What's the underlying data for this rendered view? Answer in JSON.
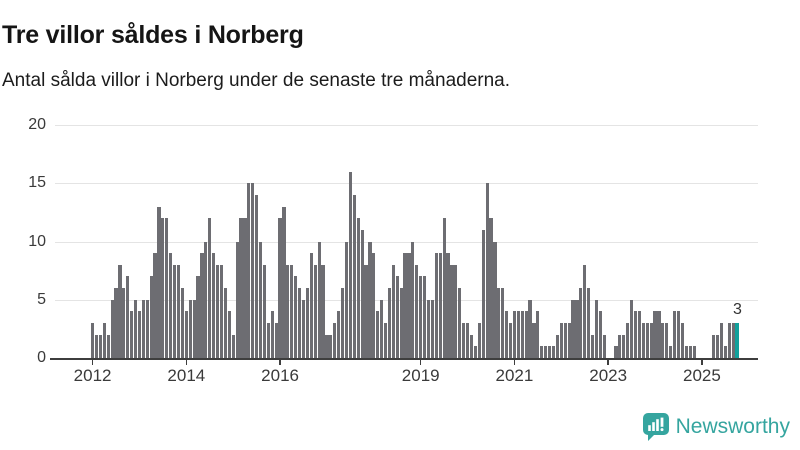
{
  "title": "Tre villor såldes i Norberg",
  "subtitle": "Antal sålda villor i Norberg under de senaste tre månaderna.",
  "chart_data": {
    "type": "bar",
    "x_start": "2012-01",
    "x_interval": "month",
    "values": [
      3,
      2,
      2,
      3,
      2,
      5,
      6,
      8,
      6,
      7,
      4,
      5,
      4,
      5,
      5,
      7,
      9,
      13,
      12,
      12,
      9,
      8,
      8,
      6,
      4,
      5,
      5,
      7,
      9,
      10,
      12,
      9,
      8,
      8,
      6,
      4,
      2,
      10,
      12,
      12,
      15,
      15,
      14,
      10,
      8,
      3,
      4,
      3,
      12,
      13,
      8,
      8,
      7,
      6,
      5,
      6,
      9,
      8,
      10,
      8,
      2,
      2,
      3,
      4,
      6,
      10,
      16,
      14,
      12,
      11,
      8,
      10,
      9,
      4,
      5,
      3,
      6,
      8,
      7,
      6,
      9,
      9,
      10,
      8,
      7,
      7,
      5,
      5,
      9,
      9,
      12,
      9,
      8,
      8,
      6,
      3,
      3,
      2,
      1,
      3,
      11,
      15,
      12,
      10,
      6,
      6,
      4,
      3,
      4,
      4,
      4,
      4,
      5,
      3,
      4,
      1,
      1,
      1,
      1,
      2,
      3,
      3,
      3,
      5,
      5,
      6,
      8,
      6,
      2,
      5,
      4,
      2,
      0,
      0,
      1,
      2,
      2,
      3,
      5,
      4,
      4,
      3,
      3,
      3,
      4,
      4,
      3,
      3,
      1,
      4,
      4,
      3,
      1,
      1,
      1,
      0,
      0,
      0,
      0,
      2,
      2,
      3,
      1,
      3,
      3,
      3
    ],
    "x_end": "2025-10",
    "highlight_last": true,
    "last_value_label": "3",
    "yticks": [
      0,
      5,
      10,
      15,
      20
    ],
    "ylim": [
      0,
      20
    ],
    "xtick_years": [
      "2012",
      "2014",
      "2016",
      "2019",
      "2021",
      "2023",
      "2025"
    ],
    "grid": "horizontal",
    "legend": "none",
    "bar_color": "#6d6d72",
    "highlight_color": "#12a19c",
    "grid_color": "#e4e4e4",
    "axis_color": "#3e3e3e",
    "tick_text_color": "#3a3a3a"
  },
  "branding": {
    "logo_text": "Newsworthy",
    "logo_color": "#35a59f",
    "logo_icon": "bar-chart-speech-bubble-icon"
  }
}
